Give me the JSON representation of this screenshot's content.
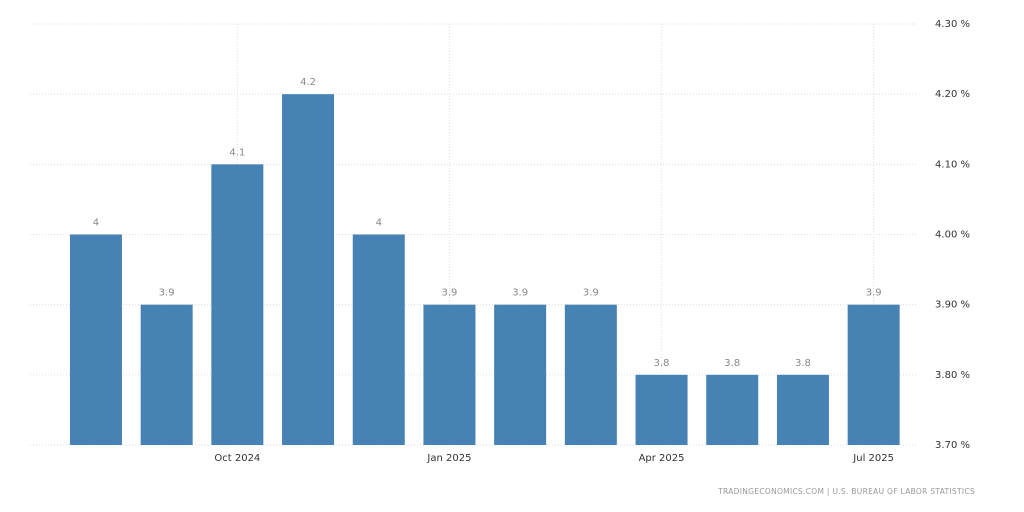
{
  "chart_data": {
    "type": "bar",
    "categories": [
      null,
      null,
      "Oct 2024",
      null,
      null,
      "Jan 2025",
      null,
      null,
      "Apr 2025",
      null,
      null,
      "Jul 2025"
    ],
    "values": [
      4,
      3.9,
      4.1,
      4.2,
      4,
      3.9,
      3.9,
      3.9,
      3.8,
      3.8,
      3.8,
      3.9
    ],
    "color": "#4682b4",
    "ylim": [
      3.7,
      4.3
    ],
    "yticks": [
      {
        "value": 3.7,
        "label": "3.70 %"
      },
      {
        "value": 3.8,
        "label": "3.80 %"
      },
      {
        "value": 3.9,
        "label": "3.90 %"
      },
      {
        "value": 4.0,
        "label": "4.00 %"
      },
      {
        "value": 4.1,
        "label": "4.10 %"
      },
      {
        "value": 4.2,
        "label": "4.20 %"
      },
      {
        "value": 4.3,
        "label": "4.30 %"
      }
    ],
    "grid": true,
    "source": "TRADINGECONOMICS.COM | U.S. BUREAU OF LABOR STATISTICS"
  }
}
